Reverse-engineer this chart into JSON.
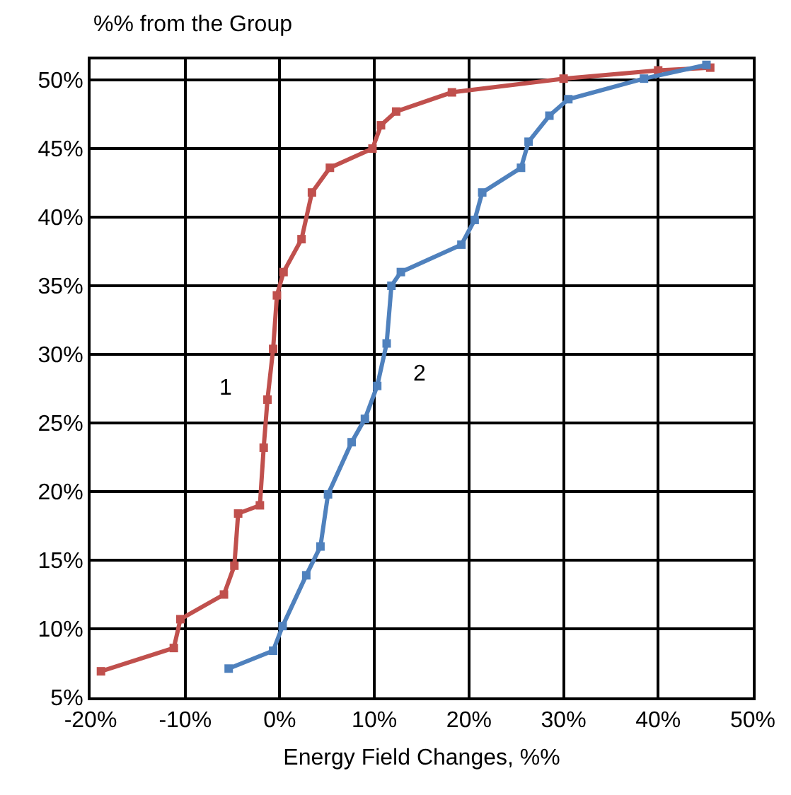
{
  "chart_data": {
    "type": "line",
    "xlabel": "Energy Field Changes, %%",
    "ylabel": "%% from the Group",
    "xlim": [
      -20,
      50
    ],
    "xticks": [
      {
        "value": -20,
        "label": "-20%"
      },
      {
        "value": -10,
        "label": "-10%"
      },
      {
        "value": 0,
        "label": "0%"
      },
      {
        "value": 10,
        "label": "10%"
      },
      {
        "value": 20,
        "label": "20%"
      },
      {
        "value": 30,
        "label": "30%"
      },
      {
        "value": 40,
        "label": "40%"
      },
      {
        "value": 50,
        "label": "50%"
      }
    ],
    "ylim": [
      5,
      51.5
    ],
    "yticks": [
      {
        "value": 5,
        "label": "5%"
      },
      {
        "value": 10,
        "label": "10%"
      },
      {
        "value": 15,
        "label": "15%"
      },
      {
        "value": 20,
        "label": "20%"
      },
      {
        "value": 25,
        "label": "25%"
      },
      {
        "value": 30,
        "label": "30%"
      },
      {
        "value": 35,
        "label": "35%"
      },
      {
        "value": 40,
        "label": "40%"
      },
      {
        "value": 45,
        "label": "45%"
      },
      {
        "value": 50,
        "label": "50%"
      }
    ],
    "grid": true,
    "legend": false,
    "marker": "square",
    "line_style": "solid",
    "series": [
      {
        "name": "1",
        "color": "#c0504d",
        "x": [
          -18.9,
          -11.2,
          -10.5,
          -5.9,
          -4.8,
          -4.4,
          -2.1,
          -1.7,
          -1.3,
          -0.7,
          -0.3,
          0.4,
          2.3,
          3.4,
          5.3,
          9.8,
          10.7,
          12.3,
          18.2,
          30,
          40,
          45.5
        ],
        "values": [
          6.9,
          8.6,
          10.7,
          12.5,
          14.6,
          18.4,
          19,
          23.2,
          26.7,
          30.4,
          34.3,
          36,
          38.4,
          41.8,
          43.6,
          45,
          46.7,
          47.7,
          49.1,
          50.1,
          50.7,
          50.9
        ]
      },
      {
        "name": "2",
        "color": "#4f81bd",
        "x": [
          -5.4,
          -0.7,
          0.3,
          2.8,
          4.3,
          5.1,
          7.6,
          9,
          10.3,
          11.3,
          11.8,
          12.8,
          19.2,
          20.6,
          21.4,
          25.5,
          26.3,
          28.5,
          30.5,
          38.5,
          45.1
        ],
        "values": [
          7.1,
          8.4,
          10.2,
          13.9,
          16,
          19.8,
          23.6,
          25.3,
          27.7,
          30.8,
          35,
          36,
          38,
          39.8,
          41.8,
          43.6,
          45.5,
          47.4,
          48.6,
          50.1,
          51.1
        ]
      }
    ]
  }
}
